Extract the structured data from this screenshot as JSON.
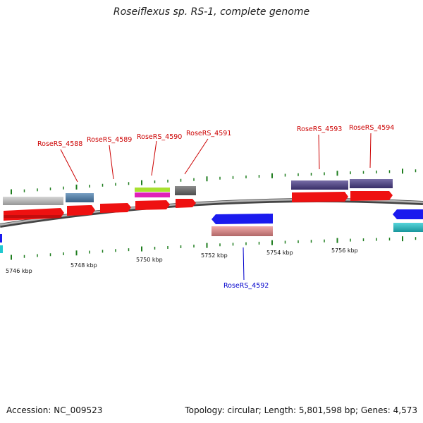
{
  "title": "Roseiflexus sp. RS-1, complete genome",
  "footer": {
    "accession": "Accession: NC_009523",
    "info": "Topology: circular; Length: 5,801,598 bp; Genes: 4,573"
  },
  "axis": {
    "unit": "kbp",
    "labels": [
      "5746 kbp",
      "5748 kbp",
      "5750 kbp",
      "5752 kbp",
      "5754 kbp",
      "5756 kbp"
    ]
  },
  "colors": {
    "backbone": "#8a8a8a",
    "forward_gene": "#ee1111",
    "reverse_gene": "#1a1aee",
    "label_forward": "#cc0000",
    "label_reverse": "#0000cc",
    "tick": "#1e7d1e"
  },
  "gene_labels": {
    "g4588": "RoseRS_4588",
    "g4589": "RoseRS_4589",
    "g4590": "RoseRS_4590",
    "g4591": "RoseRS_4591",
    "g4592": "RoseRS_4592",
    "g4593": "RoseRS_4593",
    "g4594": "RoseRS_4594"
  }
}
